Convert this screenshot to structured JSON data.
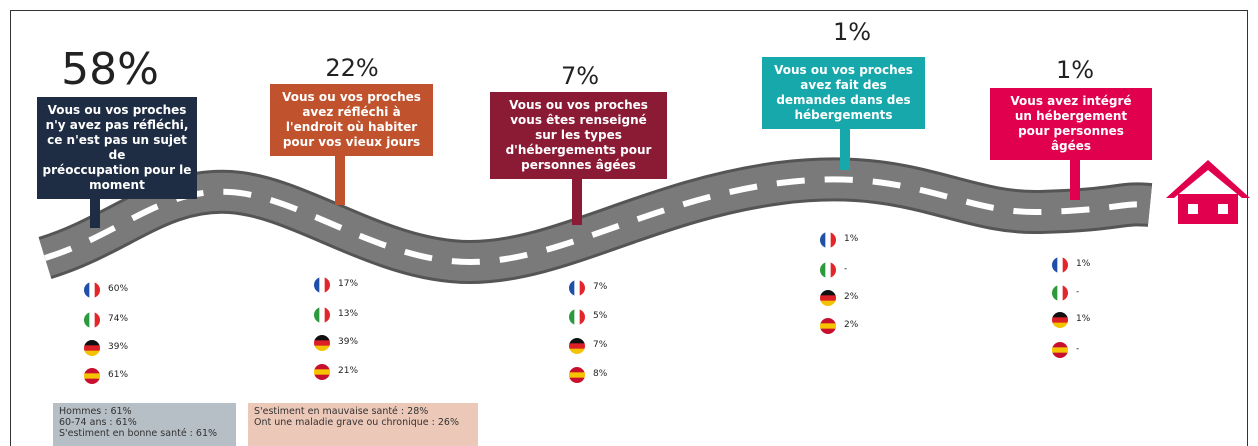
{
  "stages": [
    {
      "percent": "58%",
      "label": [
        "Vous ou vos proches",
        "n'y avez pas réfléchi,",
        "ce n'est pas un sujet de",
        "préoccupation pour le",
        "moment"
      ],
      "countries": [
        "60%",
        "74%",
        "39%",
        "61%"
      ]
    },
    {
      "percent": "22%",
      "label": [
        "Vous ou vos proches",
        "avez réfléchi à",
        "l'endroit où habiter",
        "pour vos vieux jours"
      ],
      "countries": [
        "17%",
        "13%",
        "39%",
        "21%"
      ]
    },
    {
      "percent": "7%",
      "label": [
        "Vous ou vos proches",
        "vous êtes renseigné",
        "sur les types",
        "d'hébergements pour",
        "personnes âgées"
      ],
      "countries": [
        "7%",
        "5%",
        "7%",
        "8%"
      ]
    },
    {
      "percent": "1%",
      "label": [
        "Vous ou vos proches",
        "avez fait des",
        "demandes dans des",
        "hébergements"
      ],
      "countries": [
        "1%",
        "-",
        "2%",
        "2%"
      ]
    },
    {
      "percent": "1%",
      "label": [
        "Vous avez intégré",
        "un hébergement",
        "pour personnes",
        "âgées"
      ],
      "countries": [
        "1%",
        "-",
        "1%",
        "-"
      ]
    }
  ],
  "notes": [
    [
      "Hommes : 61%",
      "60-74 ans : 61%",
      "S'estiment en bonne santé : 61%"
    ],
    [
      "S'estiment en mauvaise santé : 28%",
      "Ont une maladie grave ou chronique : 26%"
    ]
  ]
}
